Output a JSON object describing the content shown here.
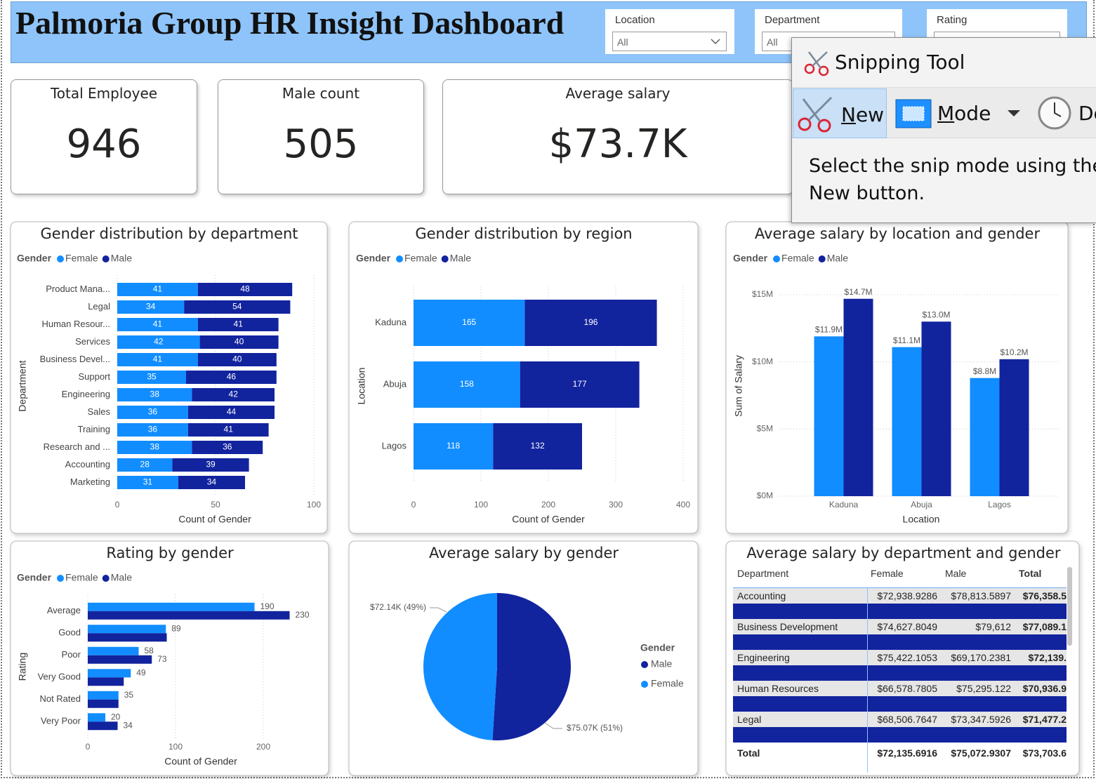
{
  "header": {
    "title": "Palmoria Group HR Insight Dashboard"
  },
  "filters": [
    {
      "label": "Location",
      "value": "All"
    },
    {
      "label": "Department",
      "value": "All"
    },
    {
      "label": "Rating"
    }
  ],
  "cards": [
    {
      "title": "Total Employee",
      "value": 946
    },
    {
      "title": "Male count",
      "value": 505
    },
    {
      "title": "Average salary",
      "value": "$73.7K"
    }
  ],
  "chart_data": [
    {
      "type": "bar",
      "orientation": "horizontal",
      "stacked": true,
      "title": "Gender distribution by department",
      "legend_title": "Gender",
      "legend": "top-left",
      "x_label": "Count of Gender",
      "y_label": "Department",
      "categories": [
        "Product Mana...",
        "Legal",
        "Human Resour...",
        "Services",
        "Business Devel...",
        "Support",
        "Engineering",
        "Sales",
        "Training",
        "Research and ...",
        "Accounting",
        "Marketing"
      ],
      "series": [
        {
          "name": "Female",
          "color": "#118dff",
          "values": [
            41,
            34,
            41,
            42,
            41,
            35,
            38,
            36,
            36,
            38,
            28,
            31
          ]
        },
        {
          "name": "Male",
          "color": "#12239e",
          "values": [
            48,
            54,
            41,
            40,
            40,
            46,
            42,
            44,
            41,
            36,
            39,
            34
          ]
        }
      ],
      "xlim": [
        0,
        100
      ],
      "xticks": [
        0,
        50,
        100
      ],
      "grid": true
    },
    {
      "type": "bar",
      "orientation": "horizontal",
      "stacked": true,
      "title": "Gender distribution by region",
      "legend_title": "Gender",
      "legend": "top-left",
      "x_label": "Count of Gender",
      "y_label": "Location",
      "categories": [
        "Kaduna",
        "Abuja",
        "Lagos"
      ],
      "series": [
        {
          "name": "Female",
          "color": "#118dff",
          "values": [
            165,
            158,
            118
          ]
        },
        {
          "name": "Male",
          "color": "#12239e",
          "values": [
            196,
            177,
            132
          ]
        }
      ],
      "xlim": [
        0,
        400
      ],
      "xticks": [
        0,
        100,
        200,
        300,
        400
      ],
      "grid": true
    },
    {
      "type": "bar",
      "orientation": "vertical",
      "stacked": false,
      "title": "Average salary by location and gender",
      "legend_title": "Gender",
      "legend": "top-left",
      "x_label": "Location",
      "y_label": "Sum of Salary",
      "categories": [
        "Kaduna",
        "Abuja",
        "Lagos"
      ],
      "series": [
        {
          "name": "Female",
          "color": "#118dff",
          "values": [
            11900000,
            11100000,
            8800000
          ],
          "value_labels": [
            "$11.9M",
            "$11.1M",
            "$8.8M"
          ]
        },
        {
          "name": "Male",
          "color": "#12239e",
          "values": [
            14700000,
            13000000,
            10200000
          ],
          "value_labels": [
            "$14.7M",
            "$13.0M",
            "$10.2M"
          ]
        }
      ],
      "ylim": [
        0,
        15000000
      ],
      "yticks": [
        {
          "value": 0,
          "label": "$0M"
        },
        {
          "value": 5000000,
          "label": "$5M"
        },
        {
          "value": 10000000,
          "label": "$10M"
        },
        {
          "value": 15000000,
          "label": "$15M"
        }
      ],
      "grid": true
    },
    {
      "type": "bar",
      "orientation": "horizontal",
      "stacked": false,
      "title": "Rating by gender",
      "legend_title": "Gender",
      "legend": "top-left",
      "x_label": "Count of Gender",
      "y_label": "Rating",
      "categories": [
        "Average",
        "Good",
        "Poor",
        "Very Good",
        "Not Rated",
        "Very Poor"
      ],
      "series": [
        {
          "name": "Female",
          "color": "#118dff",
          "values": [
            190,
            89,
            58,
            49,
            35,
            20
          ]
        },
        {
          "name": "Male",
          "color": "#12239e",
          "values": [
            230,
            90,
            73,
            41,
            35,
            34
          ],
          "value_labels": [
            "230",
            null,
            "73",
            null,
            null,
            "34"
          ]
        }
      ],
      "xlim": [
        0,
        272
      ],
      "xticks": [
        0,
        100,
        200
      ],
      "grid": true
    },
    {
      "type": "pie",
      "title": "Average salary by gender",
      "legend_title": "Gender",
      "legend": "right",
      "categories": [
        "Male",
        "Female"
      ],
      "values": [
        75070,
        72140
      ],
      "value_labels": [
        "$75.07K (51%)",
        "$72.14K (49%)"
      ],
      "colors": [
        "#12239e",
        "#118dff"
      ]
    }
  ],
  "table": {
    "title": "Average salary by department and gender",
    "columns": [
      "Department",
      "Female",
      "Male",
      "Total"
    ],
    "rows": [
      [
        "Accounting",
        "$72,938.9286",
        "$78,813.5897",
        "$76,358.5"
      ],
      [
        "Business Development",
        "$74,627.8049",
        "$79,612",
        "$77,089.1"
      ],
      [
        "Engineering",
        "$75,422.1053",
        "$69,170.2381",
        "$72,139."
      ],
      [
        "Human Resources",
        "$66,578.7805",
        "$75,295.122",
        "$70,936.9"
      ],
      [
        "Legal",
        "$68,506.7647",
        "$73,347.5926",
        "$71,477.2"
      ]
    ],
    "total": [
      "Total",
      "$72,135.6916",
      "$75,072.9307",
      "$73,703.6"
    ]
  },
  "snipping_tool": {
    "title": "Snipping Tool",
    "buttons": [
      "New",
      "Mode",
      "Delay"
    ],
    "message": [
      "Select the snip mode using the",
      "New button."
    ]
  }
}
